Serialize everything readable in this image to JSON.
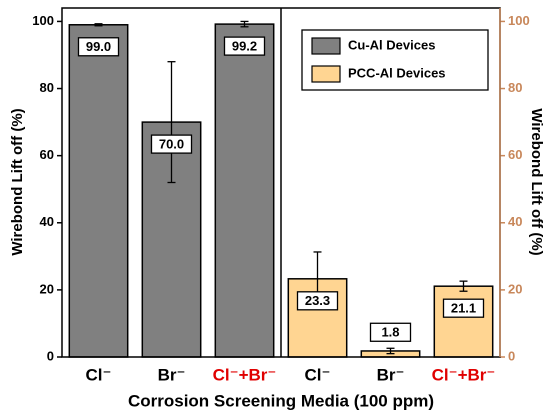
{
  "chart_data": {
    "type": "bar",
    "ylabel": "Wirebond Lift off (%)",
    "y2label": "Wirebond Lift off (%)",
    "xlabel": "Corrosion Screening Media (100 ppm)",
    "categories": [
      "Cl⁻",
      "Br⁻",
      "Cl⁻+Br⁻",
      "Cl⁻",
      "Br⁻",
      "Cl⁻+Br⁻"
    ],
    "category_colors": [
      "#000000",
      "#000000",
      "#e00000",
      "#000000",
      "#000000",
      "#e00000"
    ],
    "series": [
      {
        "name": "Cu-Al Devices",
        "color": "#808080",
        "values": [
          99.0,
          70.0,
          99.2,
          null,
          null,
          null
        ],
        "errors": [
          0.3,
          18,
          0.8,
          null,
          null,
          null
        ],
        "value_labels": [
          "99.0",
          "70.0",
          "99.2",
          null,
          null,
          null
        ]
      },
      {
        "name": "PCC-Al Devices",
        "color": "#ffd592",
        "axis": "y2",
        "values": [
          null,
          null,
          null,
          23.3,
          1.8,
          21.1
        ],
        "errors": [
          null,
          null,
          null,
          8,
          0.8,
          1.5
        ],
        "value_labels": [
          null,
          null,
          null,
          "23.3",
          "1.8",
          "21.1"
        ]
      }
    ],
    "ylim": [
      0,
      104
    ],
    "yticks": [
      0,
      20,
      40,
      60,
      80,
      100
    ],
    "y2lim": [
      0,
      104
    ],
    "y2ticks": [
      0,
      20,
      40,
      60,
      80,
      100
    ],
    "y2color": "#c8875a",
    "legend": "upper right"
  }
}
